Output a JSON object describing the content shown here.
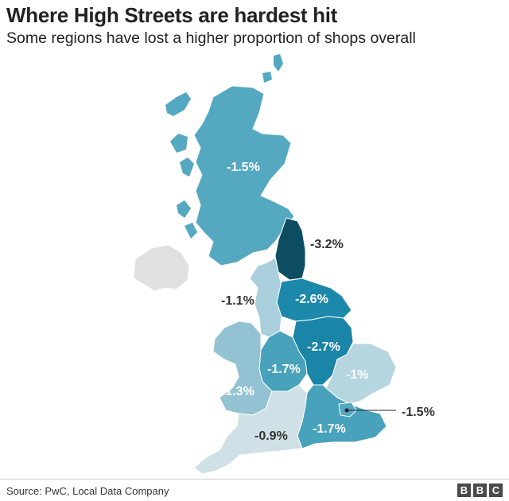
{
  "title": "Where High Streets are hardest hit",
  "subtitle": "Some regions have lost a higher proportion of shops overall",
  "source": "Source: PwC, Local Data Company",
  "logo": "BBC",
  "colors": {
    "n_ireland": "#e0e0e0",
    "v_0_9": "#cfe0e6",
    "v_1_0": "#b5d5df",
    "v_1_1": "#a9cfdc",
    "v_1_3": "#93c3d2",
    "v_1_5": "#54a8c0",
    "v_1_7": "#48a2bc",
    "v_2_6": "#1c89aa",
    "v_2_7": "#1a85a6",
    "v_3_2": "#0c4d61"
  },
  "regions": {
    "scotland": "-1.5%",
    "north_east": "-3.2%",
    "north_west": "-1.1%",
    "yorkshire": "-2.6%",
    "east_midlands": "-2.7%",
    "west_midlands": "-1.7%",
    "wales": "-1.3%",
    "east_england": "-1%",
    "london": "-1.5%",
    "south_east": "-1.7%",
    "south_west": "-0.9%"
  }
}
